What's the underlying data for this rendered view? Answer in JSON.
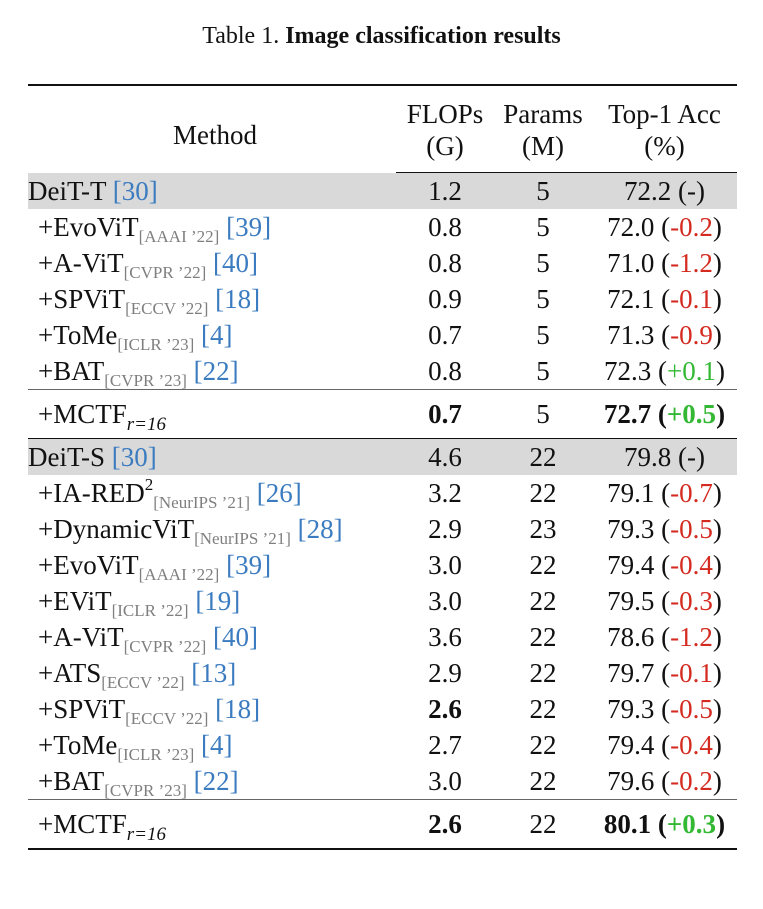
{
  "caption": {
    "prefix": "Table 1.",
    "title": "Image classification results"
  },
  "header": {
    "method": "Method",
    "flops": "FLOPs",
    "flops_unit": "(G)",
    "params": "Params",
    "params_unit": "(M)",
    "acc": "Top-1 Acc",
    "acc_unit": "(%)"
  },
  "groups": [
    {
      "base": {
        "name": "DeiT-T ",
        "ref": "[30]",
        "flops": "1.2",
        "params": "5",
        "acc": "72.2 (-)"
      },
      "rows": [
        {
          "name": "+EvoViT",
          "venue": "[AAAI ’22]",
          "ref": "[39]",
          "flops": "0.8",
          "params": "5",
          "acc": "72.0",
          "delta": "-0.2"
        },
        {
          "name": "+A-ViT",
          "venue": "[CVPR ’22]",
          "ref": "[40]",
          "flops": "0.8",
          "params": "5",
          "acc": "71.0",
          "delta": "-1.2"
        },
        {
          "name": "+SPViT",
          "venue": "[ECCV ’22]",
          "ref": "[18]",
          "flops": "0.9",
          "params": "5",
          "acc": "72.1",
          "delta": "-0.1"
        },
        {
          "name": "+ToMe",
          "venue": "[ICLR ’23]",
          "ref": "[4]",
          "flops": "0.7",
          "params": "5",
          "acc": "71.3",
          "delta": "-0.9"
        },
        {
          "name": "+BAT",
          "venue": "[CVPR ’23]",
          "ref": "[22]",
          "flops": "0.8",
          "params": "5",
          "acc": "72.3",
          "delta": "+0.1"
        }
      ],
      "ours": {
        "name": "+MCTF",
        "sub": "r=16",
        "flops": "0.7",
        "params": "5",
        "acc": "72.7",
        "delta": "+0.5"
      }
    },
    {
      "base": {
        "name": "DeiT-S ",
        "ref": "[30]",
        "flops": "4.6",
        "params": "22",
        "acc": "79.8 (-)"
      },
      "rows": [
        {
          "name": "+IA-RED",
          "sup": "2",
          "venue": "[NeurIPS ’21]",
          "ref": "[26]",
          "flops": "3.2",
          "params": "22",
          "acc": "79.1",
          "delta": "-0.7"
        },
        {
          "name": "+DynamicViT",
          "venue": "[NeurIPS ’21]",
          "ref": "[28]",
          "flops": "2.9",
          "params": "23",
          "acc": "79.3",
          "delta": "-0.5"
        },
        {
          "name": "+EvoViT",
          "venue": "[AAAI ’22]",
          "ref": "[39]",
          "flops": "3.0",
          "params": "22",
          "acc": "79.4",
          "delta": "-0.4"
        },
        {
          "name": "+EViT",
          "venue": "[ICLR ’22]",
          "ref": "[19]",
          "flops": "3.0",
          "params": "22",
          "acc": "79.5",
          "delta": "-0.3"
        },
        {
          "name": "+A-ViT",
          "venue": "[CVPR ’22]",
          "ref": "[40]",
          "flops": "3.6",
          "params": "22",
          "acc": "78.6",
          "delta": "-1.2"
        },
        {
          "name": "+ATS",
          "venue": "[ECCV ’22]",
          "ref": "[13]",
          "flops": "2.9",
          "params": "22",
          "acc": "79.7",
          "delta": "-0.1"
        },
        {
          "name": "+SPViT",
          "venue": "[ECCV ’22]",
          "ref": "[18]",
          "flops": "2.6",
          "params": "22",
          "acc": "79.3",
          "delta": "-0.5",
          "bold_flops": true
        },
        {
          "name": "+ToMe",
          "venue": "[ICLR ’23]",
          "ref": "[4]",
          "flops": "2.7",
          "params": "22",
          "acc": "79.4",
          "delta": "-0.4"
        },
        {
          "name": "+BAT",
          "venue": "[CVPR ’23]",
          "ref": "[22]",
          "flops": "3.0",
          "params": "22",
          "acc": "79.6",
          "delta": "-0.2"
        }
      ],
      "ours": {
        "name": "+MCTF",
        "sub": "r=16",
        "flops": "2.6",
        "params": "22",
        "acc": "80.1",
        "delta": "+0.3"
      }
    }
  ]
}
